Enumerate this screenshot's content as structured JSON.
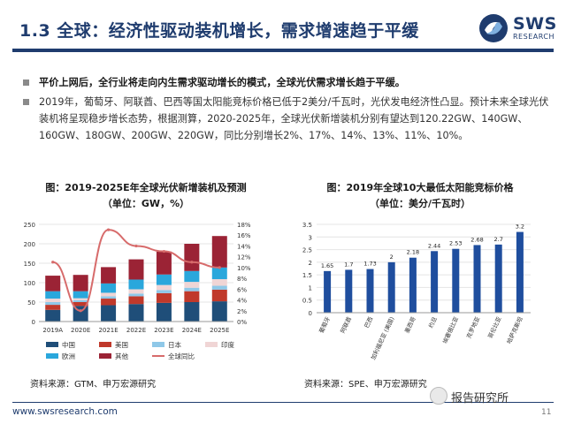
{
  "header": {
    "title": "1.3 全球：经济性驱动装机增长，需求增速趋于平缓",
    "logo_text": "SWS",
    "logo_sub": "RESEARCH",
    "logo_icon": "sws-swirl-logo"
  },
  "bullets": [
    "平价上网后，全行业将走向内生需求驱动增长的模式，全球光伏需求增长趋于平缓。",
    "2019年，葡萄牙、阿联酋、巴西等国太阳能竞标价格已低于2美分/千瓦时，光伏发电经济性凸显。预计未来全球光伏装机将呈现稳步增长态势，根据测算，2020-2025年，全球光伏新增装机分别有望达到120.22GW、140GW、160GW、180GW、200GW、220GW，同比分别增长2%、17%、14%、13%、11%、10%。"
  ],
  "chart1": {
    "title_line1": "图：2019-2025E年全球光伏新增装机及预测",
    "title_line2": "（单位：GW，%）",
    "source": "资料来源：GTM、申万宏源研究"
  },
  "chart2": {
    "title_line1": "图：2019年全球10大最低太阳能竞标价格",
    "title_line2": "（单位：美分/千瓦时）",
    "source": "资料来源：SPE、申万宏源研究"
  },
  "chart_data": [
    {
      "type": "bar",
      "stacked": true,
      "categories": [
        "2019A",
        "2020E",
        "2021E",
        "2022E",
        "2023E",
        "2024E",
        "2025E"
      ],
      "series": [
        {
          "name": "中国",
          "color": "#1f4e79",
          "values": [
            30,
            40,
            42,
            45,
            48,
            50,
            52
          ]
        },
        {
          "name": "美国",
          "color": "#c0392b",
          "values": [
            13,
            10,
            17,
            20,
            25,
            28,
            30
          ]
        },
        {
          "name": "日本",
          "color": "#8fc8e8",
          "values": [
            7,
            5,
            6,
            7,
            8,
            9,
            10
          ]
        },
        {
          "name": "印度",
          "color": "#f0d5d5",
          "values": [
            9,
            5,
            9,
            11,
            13,
            15,
            17
          ]
        },
        {
          "name": "欧洲",
          "color": "#2aa7dc",
          "values": [
            19,
            18,
            24,
            25,
            27,
            28,
            30
          ]
        },
        {
          "name": "其他",
          "color": "#9b2335",
          "values": [
            40,
            42,
            42,
            52,
            59,
            70,
            81
          ]
        }
      ],
      "line": {
        "name": "全球同比",
        "color": "#d76b6b",
        "values": [
          11,
          2,
          17,
          14,
          13,
          11,
          10
        ]
      },
      "ylim": [
        0,
        250
      ],
      "yticks": [
        0,
        50,
        100,
        150,
        200,
        250
      ],
      "y2lim": [
        0,
        18
      ],
      "y2ticks": [
        "0%",
        "2%",
        "4%",
        "6%",
        "8%",
        "10%",
        "12%",
        "14%",
        "16%",
        "18%"
      ],
      "grid": true,
      "legend": "bottom"
    },
    {
      "type": "bar",
      "categories": [
        "葡萄牙",
        "阿联酋",
        "巴西",
        "加利福尼亚 (美国)",
        "墨西哥",
        "约旦",
        "埃塞俄比亚",
        "克罗地亚",
        "哥伦比亚",
        "哈萨克斯坦"
      ],
      "values": [
        1.65,
        1.7,
        1.73,
        2,
        2.18,
        2.44,
        2.53,
        2.68,
        2.7,
        3.2
      ],
      "value_labels": [
        "1.65",
        "1.7",
        "1.73",
        "2",
        "2.18",
        "2.44",
        "2.53",
        "2.68",
        "2.7",
        "3.2"
      ],
      "color": "#1f4e9e",
      "ylim": [
        0,
        3.5
      ],
      "yticks": [
        "0",
        "0.5",
        "1",
        "1.5",
        "2",
        "2.5",
        "3",
        "3.5"
      ],
      "grid": true
    }
  ],
  "footer": {
    "url": "www.swsresearch.com",
    "watermark": "报告研究所",
    "watermark_icon": "wechat-icon",
    "page": "11"
  }
}
